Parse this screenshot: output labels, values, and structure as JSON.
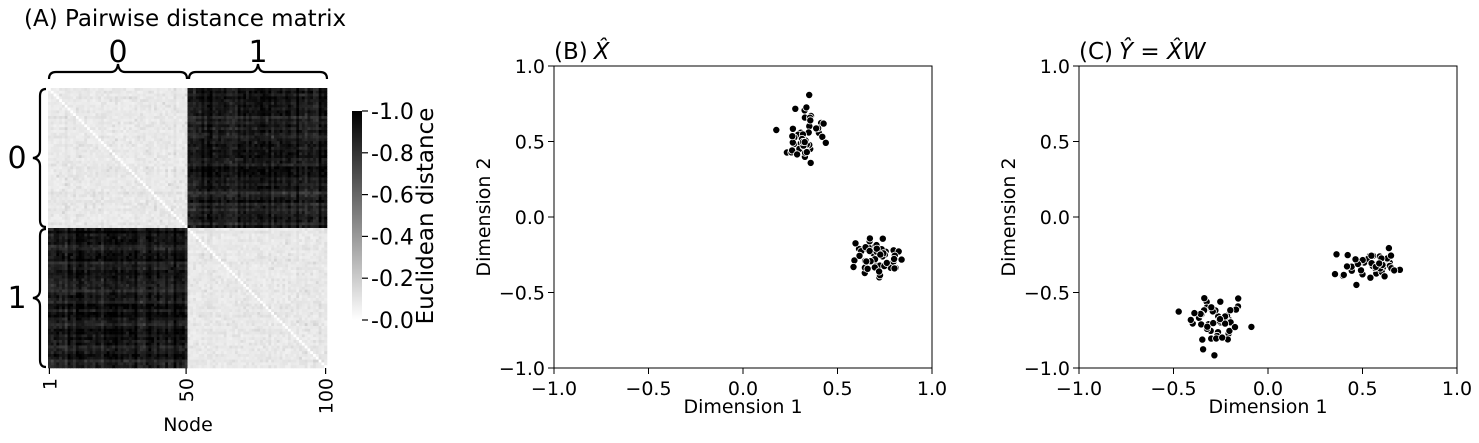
{
  "chart_data": [
    {
      "type": "heatmap",
      "title": "(A) Pairwise distance matrix",
      "xlabel": "Node",
      "x_ticks": [
        "1",
        "50",
        "100"
      ],
      "group_labels": [
        "0",
        "1"
      ],
      "n_nodes": 100,
      "groups": [
        [
          1,
          50
        ],
        [
          51,
          100
        ]
      ],
      "within_group_distance": 0.05,
      "between_group_distance": 0.9,
      "colorbar": {
        "label": "Euclidean distance",
        "range": [
          0.0,
          1.0
        ],
        "ticks": [
          "0.0",
          "0.2",
          "0.4",
          "0.6",
          "0.8",
          "1.0"
        ]
      }
    },
    {
      "type": "scatter",
      "title": "(B)",
      "title_math": "X̂",
      "xlabel": "Dimension 1",
      "ylabel": "Dimension 2",
      "xlim": [
        -1.0,
        1.0
      ],
      "ylim": [
        -1.0,
        1.0
      ],
      "x_ticks": [
        "−1.0",
        "−0.5",
        "0.0",
        "0.5",
        "1.0"
      ],
      "y_ticks": [
        "−1.0",
        "−0.5",
        "0.0",
        "0.5",
        "1.0"
      ],
      "clusters": [
        {
          "center": [
            0.33,
            0.55
          ],
          "spread": [
            0.05,
            0.1
          ],
          "n": 50
        },
        {
          "center": [
            0.71,
            -0.26
          ],
          "spread": [
            0.07,
            0.07
          ],
          "n": 50
        }
      ]
    },
    {
      "type": "scatter",
      "title": "(C)",
      "title_math": "Ŷ = X̂W",
      "xlabel": "Dimension 1",
      "ylabel": "Dimension 2",
      "xlim": [
        -1.0,
        1.0
      ],
      "ylim": [
        -1.0,
        1.0
      ],
      "x_ticks": [
        "−1.0",
        "−0.5",
        "0.0",
        "0.5",
        "1.0"
      ],
      "y_ticks": [
        "−1.0",
        "−0.5",
        "0.0",
        "0.5",
        "1.0"
      ],
      "clusters": [
        {
          "center": [
            -0.26,
            -0.71
          ],
          "spread": [
            0.07,
            0.07
          ],
          "n": 50
        },
        {
          "center": [
            0.55,
            -0.33
          ],
          "spread": [
            0.1,
            0.05
          ],
          "n": 50
        }
      ]
    }
  ]
}
